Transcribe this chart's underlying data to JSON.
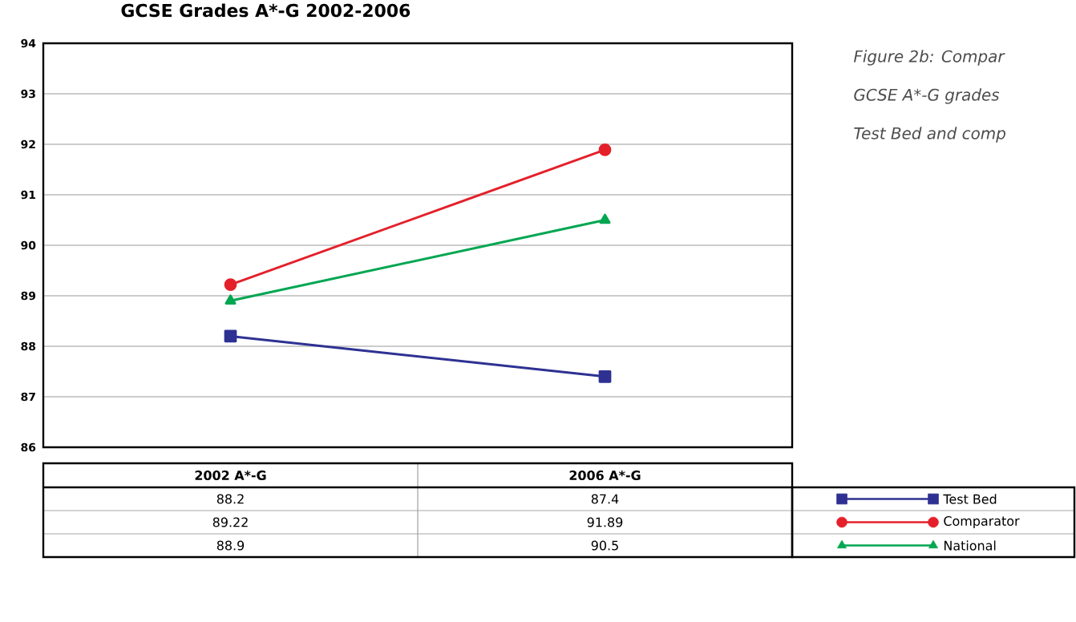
{
  "chart_data": {
    "type": "line",
    "title": "GCSE Grades A*-G 2002-2006",
    "annotations": [
      "Figure 2b: Compar",
      "GCSE A*-G grades",
      "Test Bed and comp"
    ],
    "categories": [
      "2002 A*-G",
      "2006 A*-G"
    ],
    "series": [
      {
        "name": "Test Bed",
        "color": "#2e3192",
        "marker": "square",
        "values": [
          88.2,
          87.4
        ]
      },
      {
        "name": "Comparator",
        "color": "#e4202a",
        "marker": "circle",
        "values": [
          89.22,
          91.89
        ]
      },
      {
        "name": "National",
        "color": "#00a651",
        "marker": "triangle",
        "values": [
          88.9,
          90.5
        ]
      }
    ],
    "ylim": [
      86,
      94
    ],
    "yticks": [
      86,
      87,
      88,
      89,
      90,
      91,
      92,
      93,
      94
    ],
    "grid": "y",
    "legend": "bottom right",
    "data_labels": true,
    "line_style": "solid"
  }
}
